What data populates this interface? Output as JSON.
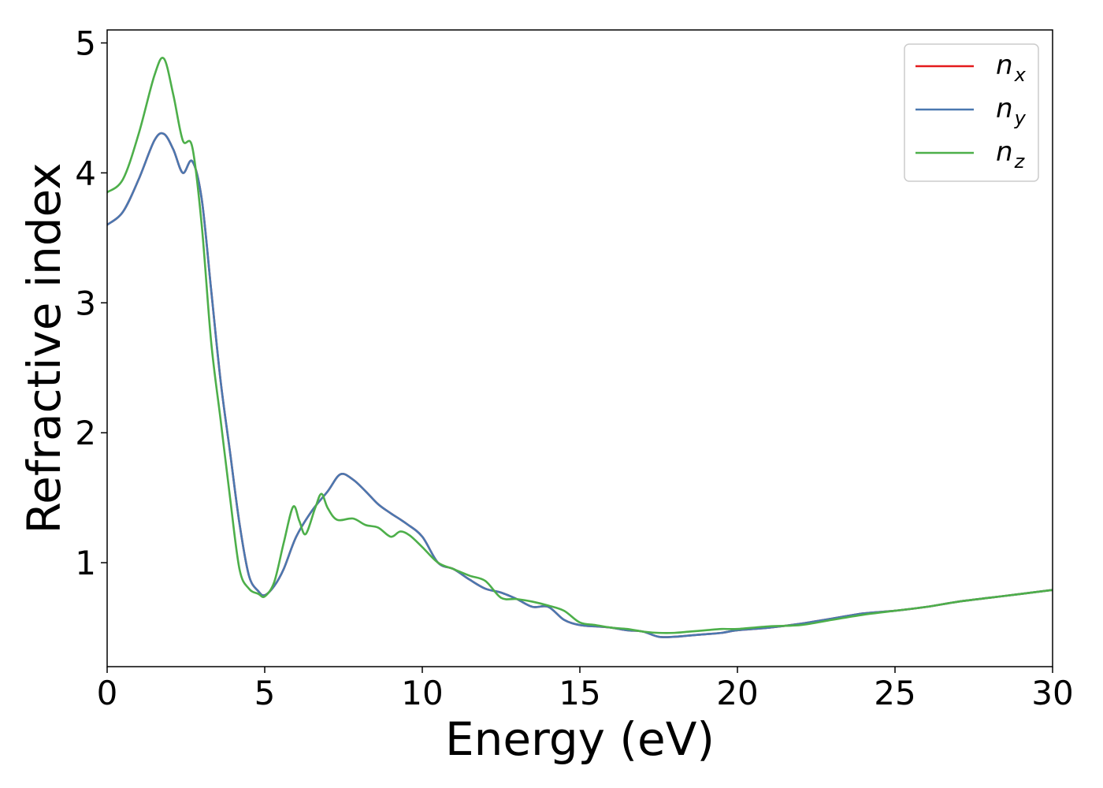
{
  "chart_data": {
    "type": "line",
    "title": "",
    "xlabel": "Energy (eV)",
    "ylabel": "Refractive index",
    "xlim": [
      0,
      30
    ],
    "ylim": [
      0.2,
      5.1
    ],
    "xticks": [
      0,
      5,
      10,
      15,
      20,
      25,
      30
    ],
    "yticks": [
      1,
      2,
      3,
      4,
      5
    ],
    "grid": false,
    "legend_position": "top-right",
    "series": [
      {
        "name_base": "n",
        "name_sub": "x",
        "color": "#e41a1c",
        "x": [
          0,
          0.5,
          1,
          1.5,
          1.8,
          2.1,
          2.4,
          2.7,
          3,
          3.3,
          3.6,
          3.9,
          4.2,
          4.5,
          4.8,
          5,
          5.3,
          5.6,
          6,
          6.5,
          7,
          7.4,
          7.8,
          8.2,
          8.6,
          9,
          9.5,
          10,
          10.5,
          11,
          11.5,
          12,
          12.5,
          13,
          13.5,
          14,
          14.5,
          15,
          15.5,
          16,
          16.5,
          17,
          17.5,
          18,
          18.5,
          19,
          19.5,
          20,
          21,
          22,
          23,
          24,
          25,
          26,
          27,
          28,
          29,
          30
        ],
        "y": [
          3.6,
          3.7,
          3.95,
          4.25,
          4.3,
          4.18,
          4.0,
          4.09,
          3.8,
          3.1,
          2.4,
          1.85,
          1.3,
          0.9,
          0.78,
          0.75,
          0.82,
          0.95,
          1.2,
          1.4,
          1.55,
          1.68,
          1.64,
          1.55,
          1.45,
          1.38,
          1.3,
          1.2,
          1.0,
          0.95,
          0.87,
          0.8,
          0.77,
          0.72,
          0.66,
          0.66,
          0.56,
          0.52,
          0.51,
          0.5,
          0.48,
          0.47,
          0.43,
          0.43,
          0.44,
          0.45,
          0.46,
          0.48,
          0.5,
          0.53,
          0.57,
          0.61,
          0.63,
          0.66,
          0.7,
          0.73,
          0.76,
          0.79
        ]
      },
      {
        "name_base": "n",
        "name_sub": "y",
        "color": "#4a78b0",
        "x": [
          0,
          0.5,
          1,
          1.5,
          1.8,
          2.1,
          2.4,
          2.7,
          3,
          3.3,
          3.6,
          3.9,
          4.2,
          4.5,
          4.8,
          5,
          5.3,
          5.6,
          6,
          6.5,
          7,
          7.4,
          7.8,
          8.2,
          8.6,
          9,
          9.5,
          10,
          10.5,
          11,
          11.5,
          12,
          12.5,
          13,
          13.5,
          14,
          14.5,
          15,
          15.5,
          16,
          16.5,
          17,
          17.5,
          18,
          18.5,
          19,
          19.5,
          20,
          21,
          22,
          23,
          24,
          25,
          26,
          27,
          28,
          29,
          30
        ],
        "y": [
          3.6,
          3.7,
          3.95,
          4.25,
          4.3,
          4.18,
          4.0,
          4.09,
          3.8,
          3.1,
          2.4,
          1.85,
          1.3,
          0.9,
          0.78,
          0.75,
          0.82,
          0.95,
          1.2,
          1.4,
          1.55,
          1.68,
          1.64,
          1.55,
          1.45,
          1.38,
          1.3,
          1.2,
          1.0,
          0.95,
          0.87,
          0.8,
          0.77,
          0.72,
          0.66,
          0.66,
          0.56,
          0.52,
          0.51,
          0.5,
          0.48,
          0.47,
          0.43,
          0.43,
          0.44,
          0.45,
          0.46,
          0.48,
          0.5,
          0.53,
          0.57,
          0.61,
          0.63,
          0.66,
          0.7,
          0.73,
          0.76,
          0.79
        ]
      },
      {
        "name_base": "n",
        "name_sub": "z",
        "color": "#4daf4a",
        "x": [
          0,
          0.5,
          1,
          1.5,
          1.8,
          2.1,
          2.4,
          2.7,
          3,
          3.3,
          3.6,
          3.9,
          4.2,
          4.5,
          4.8,
          5,
          5.3,
          5.6,
          5.9,
          6.1,
          6.3,
          6.6,
          6.8,
          7.0,
          7.3,
          7.8,
          8.2,
          8.6,
          9.0,
          9.3,
          9.6,
          10,
          10.5,
          11,
          11.5,
          12,
          12.5,
          13,
          13.5,
          14,
          14.5,
          15,
          15.5,
          16,
          16.5,
          17,
          17.5,
          18,
          18.5,
          19,
          19.5,
          20,
          21,
          22,
          23,
          24,
          25,
          26,
          27,
          28,
          29,
          30
        ],
        "y": [
          3.85,
          3.95,
          4.3,
          4.75,
          4.88,
          4.6,
          4.25,
          4.2,
          3.6,
          2.7,
          2.1,
          1.5,
          0.95,
          0.8,
          0.76,
          0.74,
          0.85,
          1.15,
          1.43,
          1.32,
          1.22,
          1.42,
          1.53,
          1.42,
          1.33,
          1.34,
          1.29,
          1.27,
          1.2,
          1.24,
          1.21,
          1.12,
          1.0,
          0.95,
          0.9,
          0.86,
          0.73,
          0.72,
          0.7,
          0.67,
          0.63,
          0.54,
          0.52,
          0.5,
          0.49,
          0.47,
          0.46,
          0.46,
          0.47,
          0.48,
          0.49,
          0.49,
          0.51,
          0.52,
          0.56,
          0.6,
          0.63,
          0.66,
          0.7,
          0.73,
          0.76,
          0.79
        ]
      }
    ]
  }
}
